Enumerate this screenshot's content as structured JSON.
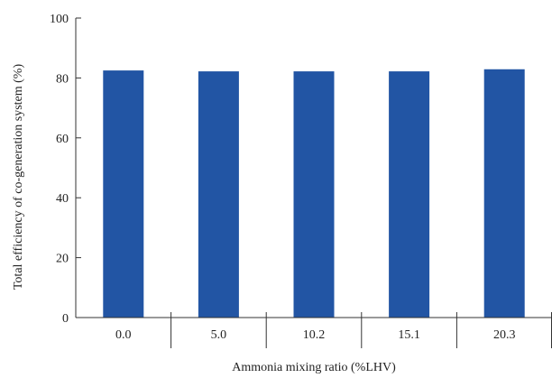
{
  "colors": {
    "bar": "#2255a4",
    "axis": "#333333"
  },
  "chart_data": {
    "type": "bar",
    "title": "",
    "xlabel": "Ammonia mixing ratio  (%LHV)",
    "ylabel": "Total efficiency of co-generation system  (%)",
    "categories": [
      "0.0",
      "5.0",
      "10.2",
      "15.1",
      "20.3"
    ],
    "values": [
      82.5,
      82.2,
      82.2,
      82.2,
      82.9
    ],
    "ylim": [
      0,
      100
    ],
    "yticks": [
      0,
      20,
      40,
      60,
      80,
      100
    ],
    "ytick_labels": [
      "0",
      "20",
      "40",
      "60",
      "80",
      "100"
    ],
    "grid": false,
    "legend": "none"
  }
}
